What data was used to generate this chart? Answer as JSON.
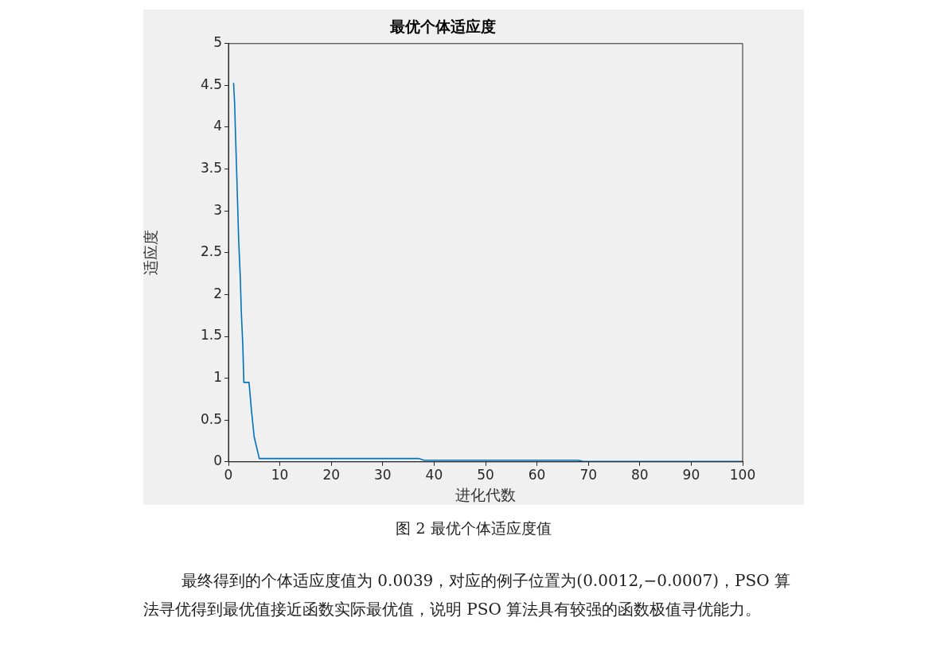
{
  "chart_data": {
    "type": "line",
    "title": "最优个体适应度",
    "xlabel": "进化代数",
    "ylabel": "适应度",
    "xlim": [
      0,
      100
    ],
    "xticks": [
      0,
      10,
      20,
      30,
      40,
      50,
      60,
      70,
      80,
      90,
      100
    ],
    "ylim": [
      0,
      5
    ],
    "yticks": [
      0,
      0.5,
      1,
      1.5,
      2,
      2.5,
      3,
      3.5,
      4,
      4.5,
      5
    ],
    "grid": false,
    "legend": false,
    "series": [
      {
        "color": "#0072bd",
        "x": [
          1,
          1.2,
          1.4,
          1.6,
          1.8,
          2,
          2.3,
          2.5,
          2.8,
          3,
          4,
          4.5,
          5,
          6,
          37,
          38,
          68,
          69,
          100
        ],
        "values": [
          4.53,
          4.29,
          3.86,
          3.47,
          3.05,
          2.63,
          2.21,
          1.8,
          1.38,
          0.95,
          0.95,
          0.6,
          0.3,
          0.04,
          0.04,
          0.02,
          0.02,
          0.0039,
          0.0039
        ]
      }
    ],
    "annotations": [
      "图 2  最优个体适应度值",
      "最终得到的个体适应度值为 0.0039，对应的例子位置为(0.0012,−0.0007)，PSO 算法寻优得到最优值接近函数实际最优值，说明 PSO 算法具有较强的函数极值寻优能力。"
    ]
  }
}
